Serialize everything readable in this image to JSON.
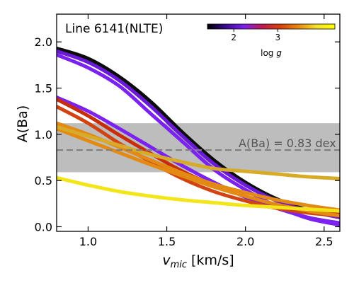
{
  "chart_data": {
    "type": "line",
    "title": "Line 6141(NLTE)",
    "xlabel_main": "v",
    "xlabel_sub": "mic",
    "xlabel_units": " [km/s]",
    "ylabel": "A(Ba)",
    "xlim": [
      0.8,
      2.6
    ],
    "ylim": [
      -0.05,
      2.3
    ],
    "x_ticks": [
      1.0,
      1.5,
      2.0,
      2.5
    ],
    "x_tick_labels": [
      "1.0",
      "1.5",
      "2.0",
      "2.5"
    ],
    "y_ticks": [
      0.0,
      0.5,
      1.0,
      1.5,
      2.0
    ],
    "y_tick_labels": [
      "0.0",
      "0.5",
      "1.0",
      "1.5",
      "2.0"
    ],
    "reference": {
      "value": 0.83,
      "label": "A(Ba) = 0.83 dex",
      "band": [
        0.59,
        1.12
      ],
      "band_color": "#bdbdbd",
      "line_color": "#808080"
    },
    "colorbar": {
      "label_text": "log ",
      "label_var": "g",
      "range": [
        1.4,
        4.3
      ],
      "ticks": [
        "2",
        "3"
      ],
      "tick_values": [
        2,
        3
      ],
      "colors": [
        "#000000",
        "#3a0a8c",
        "#7b22f0",
        "#c01a52",
        "#d8400a",
        "#e88a12",
        "#f5e02a",
        "#ffff00"
      ]
    },
    "series": [
      {
        "color": "#0b0b0b",
        "x": [
          0.8,
          1.0,
          1.2,
          1.4,
          1.6,
          1.8,
          2.0,
          2.2,
          2.4,
          2.6
        ],
        "y": [
          1.93,
          1.82,
          1.62,
          1.35,
          1.02,
          0.72,
          0.48,
          0.3,
          0.18,
          0.1
        ]
      },
      {
        "color": "#6a1ad6",
        "x": [
          0.8,
          1.0,
          1.2,
          1.4,
          1.6,
          1.8,
          2.0,
          2.2,
          2.4,
          2.6
        ],
        "y": [
          1.9,
          1.78,
          1.58,
          1.3,
          0.98,
          0.68,
          0.45,
          0.28,
          0.17,
          0.1
        ]
      },
      {
        "color": "#7b22f0",
        "x": [
          0.8,
          1.0,
          1.2,
          1.4,
          1.6,
          1.8,
          2.0,
          2.2,
          2.4,
          2.6
        ],
        "y": [
          1.86,
          1.72,
          1.52,
          1.22,
          0.92,
          0.62,
          0.4,
          0.22,
          0.09,
          0.02
        ]
      },
      {
        "color": "#7b22f0",
        "x": [
          0.8,
          1.0,
          1.2,
          1.4,
          1.6,
          1.8,
          2.0,
          2.2,
          2.4,
          2.6
        ],
        "y": [
          1.4,
          1.25,
          1.06,
          0.86,
          0.66,
          0.48,
          0.32,
          0.2,
          0.1,
          0.04
        ]
      },
      {
        "color": "#c82d0a",
        "x": [
          0.8,
          1.0,
          1.2,
          1.4,
          1.6,
          1.8,
          2.0,
          2.2,
          2.4,
          2.6
        ],
        "y": [
          1.38,
          1.2,
          0.99,
          0.79,
          0.6,
          0.45,
          0.33,
          0.24,
          0.18,
          0.14
        ]
      },
      {
        "color": "#d14412",
        "x": [
          0.8,
          1.0,
          1.2,
          1.4,
          1.6,
          1.8,
          2.0,
          2.2,
          2.4,
          2.6
        ],
        "y": [
          1.3,
          1.12,
          0.9,
          0.7,
          0.52,
          0.38,
          0.28,
          0.2,
          0.15,
          0.12
        ]
      },
      {
        "color": "#e38a14",
        "x": [
          0.8,
          1.0,
          1.2,
          1.4,
          1.6,
          1.8,
          2.0,
          2.2,
          2.4,
          2.6
        ],
        "y": [
          1.12,
          1.0,
          0.86,
          0.72,
          0.58,
          0.46,
          0.37,
          0.29,
          0.23,
          0.18
        ]
      },
      {
        "color": "#e38a14",
        "x": [
          0.8,
          1.0,
          1.2,
          1.4,
          1.6,
          1.8,
          2.0,
          2.2,
          2.4,
          2.6
        ],
        "y": [
          1.06,
          0.93,
          0.8,
          0.67,
          0.55,
          0.43,
          0.33,
          0.24,
          0.17,
          0.12
        ]
      },
      {
        "color": "#d7ab28",
        "x": [
          0.8,
          1.0,
          1.2,
          1.4,
          1.6,
          1.8,
          2.0,
          2.2,
          2.4,
          2.6
        ],
        "y": [
          1.08,
          0.98,
          0.88,
          0.78,
          0.7,
          0.63,
          0.6,
          0.57,
          0.54,
          0.52
        ]
      },
      {
        "color": "#f2e61a",
        "x": [
          0.8,
          1.0,
          1.2,
          1.4,
          1.6,
          1.8,
          2.0,
          2.2,
          2.4,
          2.6
        ],
        "y": [
          0.53,
          0.45,
          0.38,
          0.33,
          0.29,
          0.26,
          0.23,
          0.21,
          0.19,
          0.17
        ]
      }
    ]
  }
}
